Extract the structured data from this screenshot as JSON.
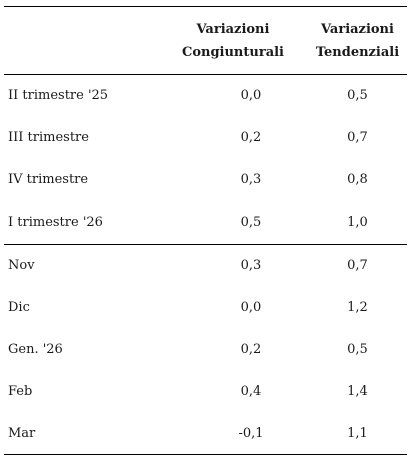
{
  "header": {
    "col1_line1": "Variazioni",
    "col1_line2": "Congiunturali",
    "col2_line1": "Variazioni",
    "col2_line2": "Tendenziali"
  },
  "quarters": [
    {
      "label": "II trimestre '25",
      "cong": "0,0",
      "tend": "0,5"
    },
    {
      "label": "III trimestre",
      "cong": "0,2",
      "tend": "0,7"
    },
    {
      "label": "IV trimestre",
      "cong": "0,3",
      "tend": "0,8"
    },
    {
      "label": "I trimestre '26",
      "cong": "0,5",
      "tend": "1,0"
    }
  ],
  "months": [
    {
      "label": "Nov",
      "cong": "0,3",
      "tend": "0,7"
    },
    {
      "label": "Dic",
      "cong": "0,0",
      "tend": "1,2"
    },
    {
      "label": "Gen. '26",
      "cong": "0,2",
      "tend": "0,5"
    },
    {
      "label": "Feb",
      "cong": "0,4",
      "tend": "1,4"
    },
    {
      "label": "Mar",
      "cong": "-0,1",
      "tend": "1,1"
    }
  ]
}
